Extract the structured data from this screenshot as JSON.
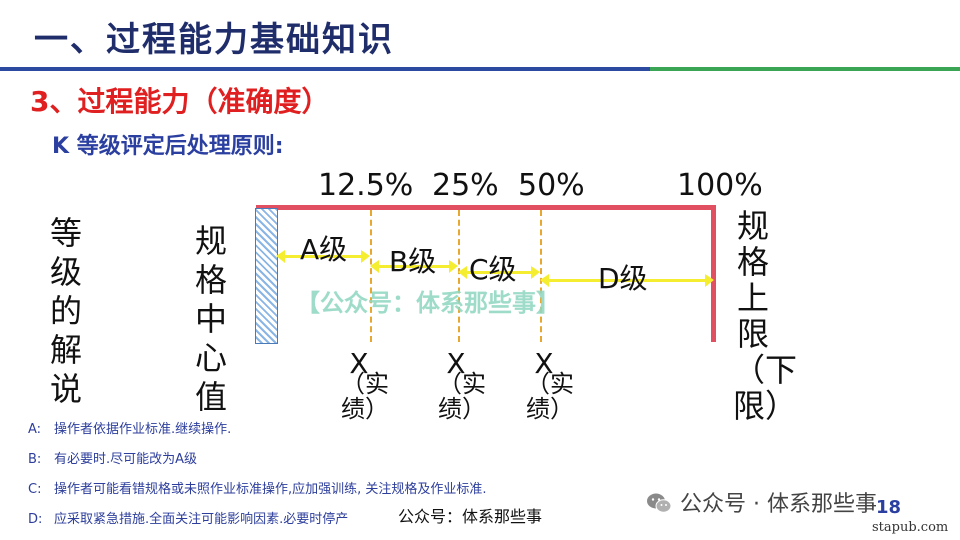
{
  "header": {
    "title": "一、过程能力基础知识",
    "section": "3、过程能力（准确度）",
    "subtitle": "K 等级评定后处理原则:"
  },
  "colors": {
    "title_text": "#1f2d6b",
    "section_red": "#e02020",
    "boundary_red": "#e05060",
    "arrow_yellow": "#f5ee30",
    "dash_orange": "#e6a830",
    "note_blue": "#2d3e9c"
  },
  "diagram": {
    "percent_labels": [
      "12.5%",
      "25%",
      "50%",
      "100%"
    ],
    "left_label": "等级的解说",
    "center_label": "规格中心值",
    "right_label": "规格上限（下限）",
    "grades": [
      "A级",
      "B级",
      "C级",
      "D级"
    ],
    "x_label": "X",
    "x_sub": "（实绩）",
    "watermark": "【公众号：体系那些事】"
  },
  "notes": [
    {
      "key": "A:",
      "text": "操作者依据作业标准.继续操作."
    },
    {
      "key": "B:",
      "text": "有必要时.尽可能改为A级"
    },
    {
      "key": "C:",
      "text": "操作者可能看错规格或未照作业标准操作,应加强训练, 关注规格及作业标准."
    },
    {
      "key": "D:",
      "text": "应采取紧急措施.全面关注可能影响因素.必要时停产"
    }
  ],
  "footer": {
    "watermark": "公众号：体系那些事",
    "wechat": "公众号 · 体系那些事",
    "page": "18",
    "site": "stapub.com"
  }
}
